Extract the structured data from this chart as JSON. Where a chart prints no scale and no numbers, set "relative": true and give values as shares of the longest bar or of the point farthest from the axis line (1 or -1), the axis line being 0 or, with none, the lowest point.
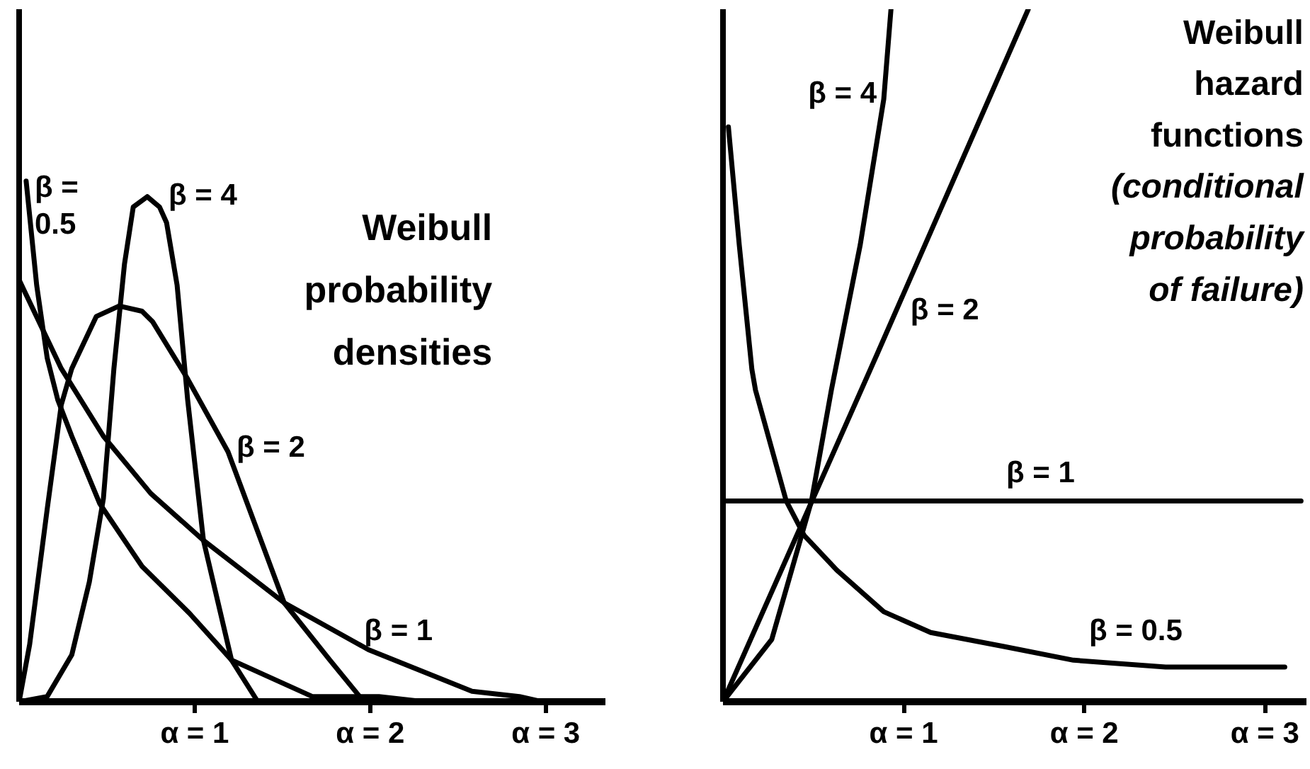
{
  "chart_data": [
    {
      "type": "line",
      "title": "Weibull probability densities",
      "relative": true,
      "grid": false,
      "legend": false,
      "tick_labels": "x",
      "xlim": [
        0,
        3.34
      ],
      "xticks": [
        {
          "value": 1,
          "label": "α = 1"
        },
        {
          "value": 2,
          "label": "α = 2"
        },
        {
          "value": 3,
          "label": "α = 3"
        }
      ],
      "series": [
        {
          "name": "β = 0.5",
          "color": "#000000",
          "x": [
            0.04,
            0.1,
            0.16,
            0.22,
            0.3,
            0.46,
            0.7,
            0.97,
            1.21,
            1.67,
            2.05,
            2.31
          ],
          "values": [
            1.0,
            0.8,
            0.66,
            0.58,
            0.51,
            0.38,
            0.26,
            0.17,
            0.08,
            0.01,
            0.01,
            0.0
          ]
        },
        {
          "name": "β = 1",
          "color": "#000000",
          "x": [
            0,
            0.24,
            0.48,
            0.75,
            1.05,
            1.51,
            1.99,
            2.58,
            2.85,
            2.98
          ],
          "values": [
            0.81,
            0.64,
            0.51,
            0.4,
            0.31,
            0.19,
            0.1,
            0.02,
            0.01,
            0.0
          ]
        },
        {
          "name": "β = 2",
          "color": "#000000",
          "x": [
            0,
            0.06,
            0.16,
            0.24,
            0.3,
            0.44,
            0.57,
            0.7,
            0.76,
            0.96,
            1.19,
            1.51,
            1.77,
            1.94,
            1.99
          ],
          "values": [
            0,
            0.11,
            0.37,
            0.57,
            0.64,
            0.74,
            0.76,
            0.75,
            0.73,
            0.62,
            0.48,
            0.19,
            0.08,
            0.01,
            0.0
          ]
        },
        {
          "name": "β = 4",
          "color": "#000000",
          "x": [
            0,
            0.16,
            0.3,
            0.4,
            0.48,
            0.54,
            0.6,
            0.65,
            0.73,
            0.8,
            0.84,
            0.9,
            0.96,
            1.05,
            1.21,
            1.36
          ],
          "values": [
            0,
            0.01,
            0.09,
            0.23,
            0.39,
            0.64,
            0.84,
            0.95,
            0.97,
            0.95,
            0.92,
            0.8,
            0.58,
            0.31,
            0.08,
            0.0
          ]
        }
      ]
    },
    {
      "type": "line",
      "title": "Weibull hazard functions",
      "subtitle": "(conditional probability of failure)",
      "relative": true,
      "grid": false,
      "legend": false,
      "tick_labels": "x",
      "xlim": [
        0,
        3.23
      ],
      "xticks": [
        {
          "value": 1,
          "label": "α = 1"
        },
        {
          "value": 2,
          "label": "α = 2"
        },
        {
          "value": 3,
          "label": "α = 3"
        }
      ],
      "series": [
        {
          "name": "β = 0.5",
          "color": "#000000",
          "x": [
            0.03,
            0.09,
            0.16,
            0.18,
            0.35,
            0.45,
            0.63,
            0.89,
            1.15,
            1.55,
            1.94,
            2.45,
            3.11
          ],
          "values": [
            0.83,
            0.66,
            0.48,
            0.45,
            0.29,
            0.24,
            0.19,
            0.13,
            0.1,
            0.08,
            0.06,
            0.05,
            0.05
          ]
        },
        {
          "name": "β = 1",
          "color": "#000000",
          "x": [
            0,
            3.2
          ],
          "values": [
            0.29,
            0.29
          ]
        },
        {
          "name": "β = 2",
          "color": "#000000",
          "x": [
            0,
            0.85,
            1.69
          ],
          "values": [
            0,
            0.5,
            1.0
          ]
        },
        {
          "name": "β = 4",
          "color": "#000000",
          "x": [
            0,
            0.27,
            0.38,
            0.49,
            0.6,
            0.76,
            0.89,
            0.93
          ],
          "values": [
            0,
            0.09,
            0.19,
            0.29,
            0.45,
            0.66,
            0.87,
            1.0
          ]
        }
      ]
    }
  ]
}
